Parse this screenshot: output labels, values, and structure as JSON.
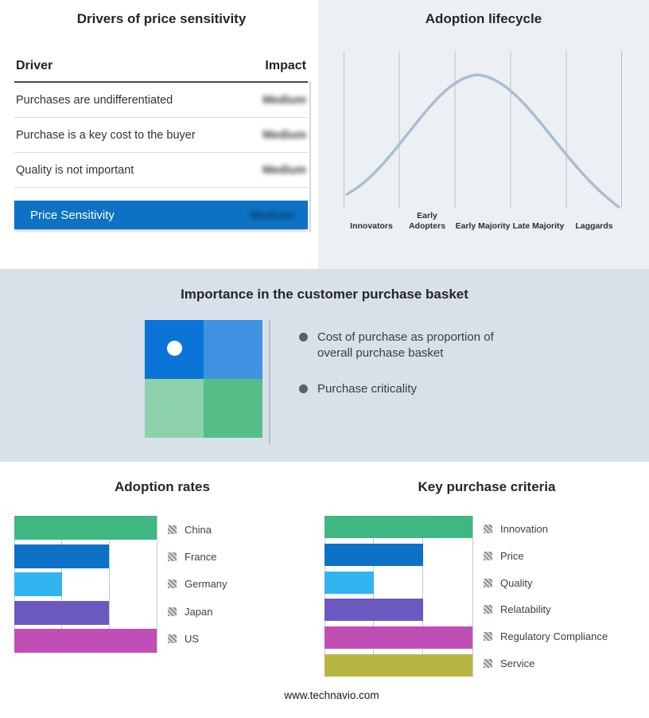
{
  "page": {
    "footer_url": "www.technavio.com"
  },
  "drivers": {
    "title": "Drivers of price sensitivity",
    "columns": {
      "driver": "Driver",
      "impact": "Impact"
    },
    "rows": [
      {
        "driver": "Purchases are undifferentiated",
        "impact": "Medium"
      },
      {
        "driver": "Purchase is a key cost to the buyer",
        "impact": "Medium"
      },
      {
        "driver": "Quality is not important",
        "impact": "Medium"
      }
    ],
    "highlight": {
      "driver": "Price Sensitivity",
      "impact": "Medium",
      "color": "#0e72c4"
    }
  },
  "lifecycle": {
    "title": "Adoption lifecycle"
  },
  "basket": {
    "title": "Importance in the customer purchase basket",
    "bullets": [
      "Cost of purchase as proportion of overall purchase basket",
      "Purchase criticality"
    ],
    "quadrant": {
      "top_left": "#0b75d7",
      "top_right": "#4093e2",
      "bottom_left": "#8ed2ab",
      "bottom_right": "#55bd88"
    }
  },
  "chart_data": [
    {
      "id": "lifecycle-curve",
      "type": "line",
      "title": "Adoption lifecycle",
      "categories": [
        "Innovators",
        "Early Adopters",
        "Early Majority",
        "Late Majority",
        "Laggards"
      ],
      "shape": "bell curve peaking over Early Majority",
      "color": "#a9bdd4",
      "grid": "vertical dividers between stages"
    },
    {
      "id": "adoption-rates",
      "type": "bar",
      "title": "Adoption rates",
      "orientation": "horizontal",
      "categories": [
        "China",
        "France",
        "Germany",
        "Japan",
        "US"
      ],
      "values": [
        3,
        2,
        1,
        2,
        3
      ],
      "colors": [
        "#3fb884",
        "#0d71c6",
        "#31b4ef",
        "#6c59c0",
        "#bf4fb5"
      ],
      "xlim": [
        0,
        3
      ],
      "gridlines": 4,
      "legend_position": "right"
    },
    {
      "id": "key-purchase-criteria",
      "type": "bar",
      "title": "Key purchase criteria",
      "orientation": "horizontal",
      "categories": [
        "Innovation",
        "Price",
        "Quality",
        "Relatability",
        "Regulatory Compliance",
        "Service"
      ],
      "values": [
        3,
        2,
        1,
        2,
        3,
        3
      ],
      "colors": [
        "#3fb884",
        "#0d71c6",
        "#31b4ef",
        "#6c59c0",
        "#bf4fb5",
        "#b8b643"
      ],
      "xlim": [
        0,
        3
      ],
      "gridlines": 4,
      "legend_position": "right"
    }
  ]
}
